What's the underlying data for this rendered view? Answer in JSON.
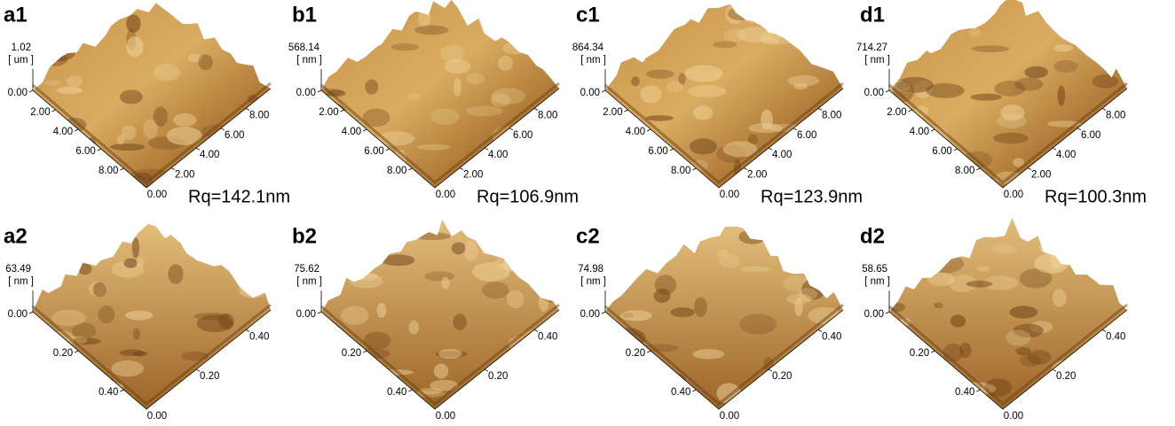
{
  "panels": [
    {
      "label": "a1",
      "z_max": "1.02",
      "z_unit": "[ um ]",
      "left_ticks": [
        "0.00",
        "2.00",
        "4.00",
        "6.00",
        "8.00"
      ],
      "bottom_tick": "0.00",
      "right_ticks": [
        "2.00",
        "4.00",
        "6.00",
        "8.00"
      ],
      "rq": "Rq=142.1nm"
    },
    {
      "label": "b1",
      "z_max": "568.14",
      "z_unit": "[ nm ]",
      "left_ticks": [
        "0.00",
        "2.00",
        "4.00",
        "6.00",
        "8.00"
      ],
      "bottom_tick": "0.00",
      "right_ticks": [
        "2.00",
        "4.00",
        "6.00",
        "8.00"
      ],
      "rq": "Rq=106.9nm"
    },
    {
      "label": "c1",
      "z_max": "864.34",
      "z_unit": "[ nm ]",
      "left_ticks": [
        "0.00",
        "2.00",
        "4.00",
        "6.00",
        "8.00"
      ],
      "bottom_tick": "0.00",
      "right_ticks": [
        "2.00",
        "4.00",
        "6.00",
        "8.00"
      ],
      "rq": "Rq=123.9nm"
    },
    {
      "label": "d1",
      "z_max": "714.27",
      "z_unit": "[ nm ]",
      "left_ticks": [
        "0.00",
        "2.00",
        "4.00",
        "6.00",
        "8.00"
      ],
      "bottom_tick": "0.00",
      "right_ticks": [
        "2.00",
        "4.00",
        "6.00",
        "8.00"
      ],
      "rq": "Rq=100.3nm"
    },
    {
      "label": "a2",
      "z_max": "63.49",
      "z_unit": "[ nm ]",
      "left_ticks": [
        "0.00",
        "0.20",
        "0.40"
      ],
      "bottom_tick": "0.00",
      "right_ticks": [
        "0.20",
        "0.40"
      ]
    },
    {
      "label": "b2",
      "z_max": "75.62",
      "z_unit": "[ nm ]",
      "left_ticks": [
        "0.00",
        "0.20",
        "0.40"
      ],
      "bottom_tick": "0.00",
      "right_ticks": [
        "0.20",
        "0.40"
      ]
    },
    {
      "label": "c2",
      "z_max": "74.98",
      "z_unit": "[ nm ]",
      "left_ticks": [
        "0.00",
        "0.20",
        "0.40"
      ],
      "bottom_tick": "0.00",
      "right_ticks": [
        "0.20",
        "0.40"
      ]
    },
    {
      "label": "d2",
      "z_max": "58.65",
      "z_unit": "[ nm ]",
      "left_ticks": [
        "0.00",
        "0.20",
        "0.40"
      ],
      "bottom_tick": "0.00",
      "right_ticks": [
        "0.20",
        "0.40"
      ]
    }
  ]
}
